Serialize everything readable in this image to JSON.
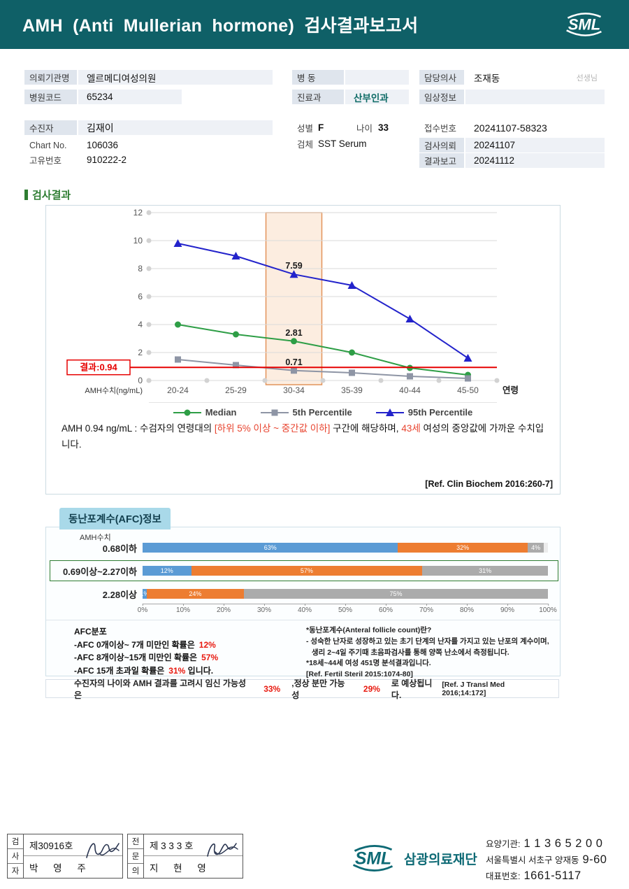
{
  "header": {
    "title": "AMH (Anti Mullerian hormone) 검사결과보고서",
    "logo_text": "SML"
  },
  "info": {
    "org_label": "의뢰기관명",
    "org": "엘르메디여성의원",
    "code_label": "병원코드",
    "code": "65234",
    "ward_label": "병 동",
    "ward": "",
    "dept_label": "진료과",
    "dept": "산부인과",
    "doctor_label": "담당의사",
    "doctor": "조재동",
    "doctor_suffix": "선생님",
    "clinical_label": "임상정보",
    "clinical": "",
    "patient_label": "수진자",
    "patient": "김재이",
    "chartno_label": "Chart No.",
    "chartno": "106036",
    "uid_label": "고유번호",
    "uid": "910222-2",
    "sex_label": "성별",
    "sex": "F",
    "age_label": "나이",
    "age": "33",
    "spec_label": "검체",
    "spec": "SST Serum",
    "receipt_label": "접수번호",
    "receipt": "20241107-58323",
    "req_label": "검사의뢰",
    "req_date": "20241107",
    "rep_label": "결과보고",
    "rep_date": "20241112"
  },
  "section": {
    "title": "검사결과"
  },
  "chart_data": [
    {
      "type": "line",
      "categories": [
        "20-24",
        "25-29",
        "30-34",
        "35-39",
        "40-44",
        "45-50"
      ],
      "x_suffix": "연령",
      "ylabel": "AMH수치(ng/mL)",
      "ylim": [
        0,
        12
      ],
      "yticks": [
        0,
        2,
        4,
        6,
        8,
        10,
        12
      ],
      "grid": true,
      "legend_position": "bottom",
      "series": [
        {
          "name": "Median",
          "marker": "circle",
          "color": "#2e9e46",
          "values": [
            4.0,
            3.3,
            2.81,
            2.0,
            0.9,
            0.4
          ]
        },
        {
          "name": "5th Percentile",
          "marker": "square",
          "color": "#8e95a5",
          "values": [
            1.5,
            1.1,
            0.71,
            0.55,
            0.3,
            0.15
          ]
        },
        {
          "name": "95th Percentile",
          "marker": "triangle",
          "color": "#2323cb",
          "values": [
            9.8,
            8.9,
            7.59,
            6.8,
            4.4,
            1.6
          ]
        }
      ],
      "point_labels": [
        {
          "series": "95th Percentile",
          "category": "30-34",
          "text": "7.59"
        },
        {
          "series": "Median",
          "category": "30-34",
          "text": "2.81"
        },
        {
          "series": "5th Percentile",
          "category": "30-34",
          "text": "0.71"
        }
      ],
      "highlight_category": "30-34",
      "highlight_fill": "#fadfc6",
      "highlight_stroke": "#e2935a",
      "result_line": {
        "value": 0.94,
        "label": "결과:0.94",
        "color": "#e60000"
      }
    },
    {
      "type": "bar",
      "stacked": true,
      "orientation": "horizontal",
      "group_label": "AMH수치",
      "categories": [
        "0.68이하",
        "0.69이상~2.27이하",
        "2.28이상"
      ],
      "highlighted_category": "0.69이상~2.27이하",
      "series": [
        {
          "name": "AFC 0~7개",
          "color": "#5b9bd5",
          "values": [
            63,
            12,
            1
          ]
        },
        {
          "name": "AFC 8~15개",
          "color": "#ed7d31",
          "values": [
            32,
            57,
            24
          ]
        },
        {
          "name": "AFC 15개 초과",
          "color": "#ababab",
          "values": [
            4,
            31,
            75
          ]
        }
      ],
      "value_suffix": "%",
      "xlim": [
        0,
        100
      ],
      "xticks": [
        "0%",
        "10%",
        "20%",
        "30%",
        "40%",
        "50%",
        "60%",
        "70%",
        "80%",
        "90%",
        "100%"
      ]
    }
  ],
  "result_note": {
    "p1": "AMH 0.94 ng/mL : 수검자의 연령대의 ",
    "range": "[하위 5% 이상 ~ 중간값 이하]",
    "p2": " 구간에 해당하며, ",
    "age": "43세",
    "p3": " 여성의 중앙값에 가까운 수치입니다."
  },
  "refs": {
    "clin": "[Ref. Clin Biochem 2016:260-7]"
  },
  "afc": {
    "tab": "동난포계수(AFC)정보",
    "dist_title": "AFC분포",
    "dist_lines": [
      {
        "text": "-AFC 0개이상~ 7개 미만인 확률은",
        "value": "12%",
        "suffix": ""
      },
      {
        "text": "-AFC 8개이상~15개 미만인 확률은",
        "value": "57%",
        "suffix": ""
      },
      {
        "text": "-AFC 15개 초과일 확률은",
        "value": "31%",
        "suffix": "입니다."
      }
    ],
    "notes": [
      "*동난포계수(Anteral follicle count)란?",
      "- 성숙한 난자로 성장하고 있는 초기 단계의 난자를 가지고 있는 난포의 계수이며,",
      "생리 2~4일 주기때 초음파검사를 통해 양쪽 난소에서 측정됩니다.",
      "*18세~44세 여성 451명 분석결과입니다."
    ],
    "ref": "[Ref. Fertil Steril 2015:1074-80]",
    "pregnancy": {
      "p1": "수진자의 나이와 AMH 결과를 고려시 임신 가능성은",
      "v1": "33%",
      "p2": ",정상 분만 가능성",
      "v2": "29%",
      "p3": "로 예상됩니다.",
      "ref": "[Ref. J Transl Med 2016;14:172]"
    }
  },
  "footer": {
    "logo_text": "SML",
    "org": "삼광의료재단",
    "stamps": [
      {
        "role": "검사자",
        "cert": "제30916호",
        "name": "박 영 주"
      },
      {
        "role": "전문의",
        "cert": "제 3 3 3 호",
        "name": "지 현 영"
      }
    ],
    "contact": [
      {
        "label": "요양기관:",
        "value": "1 1 3 6 5 2 0 0"
      },
      {
        "label": "서울특별시 서초구 양재동",
        "value": "9-60"
      },
      {
        "label": "대표번호:",
        "value": "1661-5117"
      }
    ]
  },
  "colors": {
    "header_bg": "#0f6067",
    "accent_green": "#2e7d32",
    "result_red": "#e60000",
    "highlight_orange": "#e2935a",
    "tab_blue": "#a9d9e9",
    "bar_blue": "#5b9bd5",
    "bar_orange": "#ed7d31",
    "bar_gray": "#ababab"
  }
}
